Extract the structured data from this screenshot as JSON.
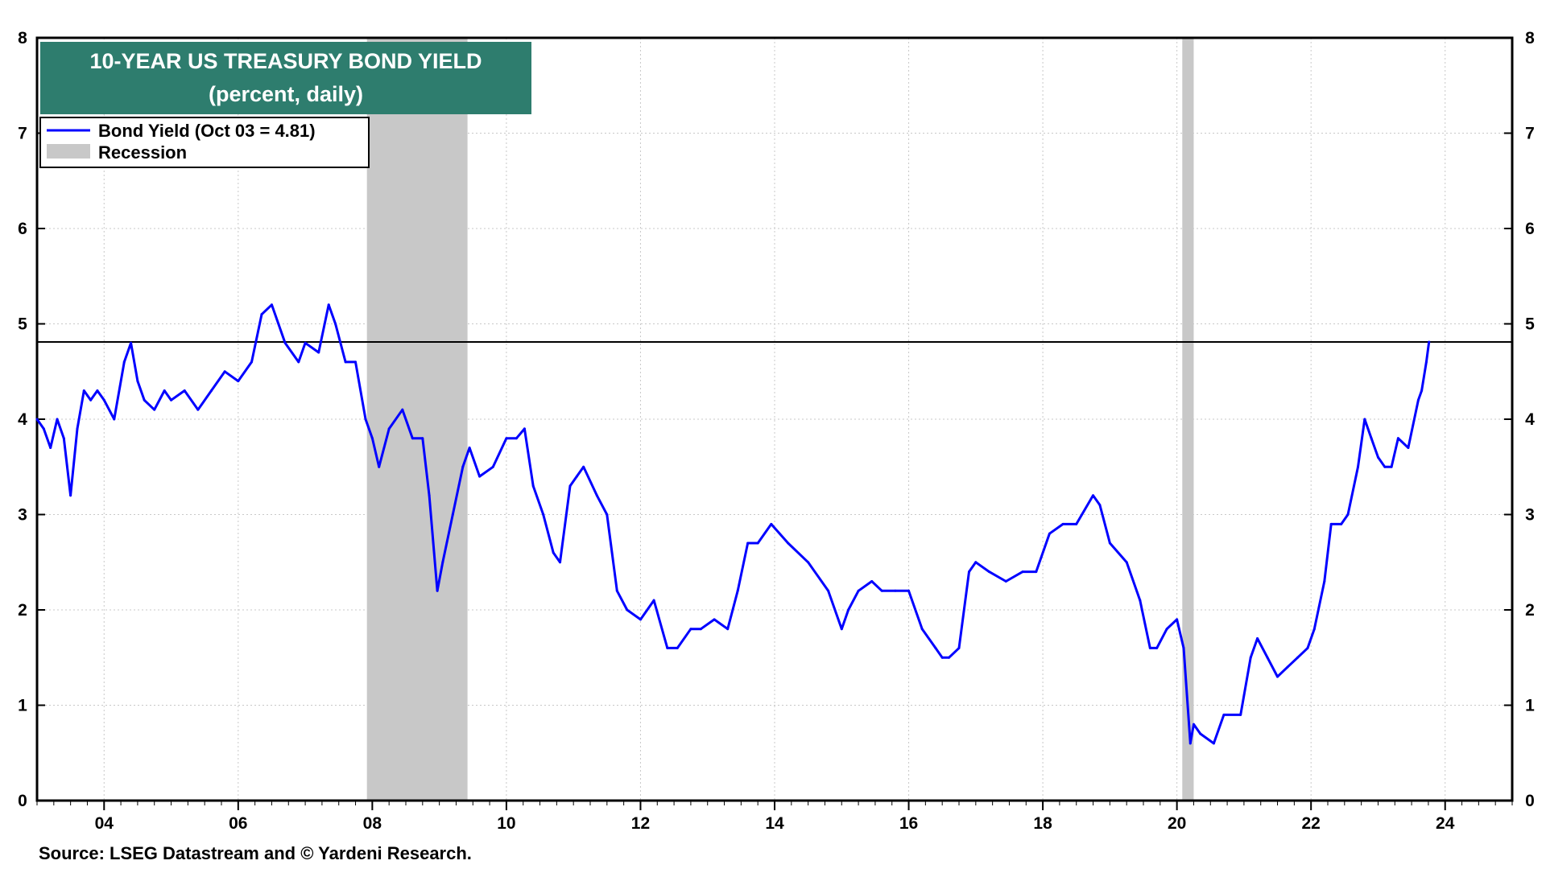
{
  "chart_data": {
    "type": "line",
    "title": "10-YEAR US TREASURY BOND YIELD",
    "subtitle": "(percent, daily)",
    "source": "Source: LSEG Datastream and © Yardeni Research.",
    "x_axis": {
      "min": 2003.0,
      "max": 2025.0,
      "tick_values": [
        2004,
        2006,
        2008,
        2010,
        2012,
        2014,
        2016,
        2018,
        2020,
        2022,
        2024
      ],
      "tick_labels": [
        "04",
        "06",
        "08",
        "10",
        "12",
        "14",
        "16",
        "18",
        "20",
        "22",
        "24"
      ]
    },
    "y_axis": {
      "min": 0,
      "max": 8,
      "tick_values": [
        0,
        1,
        2,
        3,
        4,
        5,
        6,
        7,
        8
      ],
      "tick_labels": [
        "0",
        "1",
        "2",
        "3",
        "4",
        "5",
        "6",
        "7",
        "8"
      ],
      "right_axis_mirrored": true
    },
    "grid": true,
    "legend": {
      "placement": "top-left",
      "entries": [
        {
          "label": "Bond Yield (Oct 03 = 4.81)",
          "kind": "line",
          "color": "#0000ff"
        },
        {
          "label": "Recession",
          "kind": "area",
          "color": "#c8c8c8"
        }
      ]
    },
    "reference_line": {
      "y": 4.81,
      "color": "#000000"
    },
    "recessions": [
      {
        "start": 2007.92,
        "end": 2009.42
      },
      {
        "start": 2020.08,
        "end": 2020.25
      }
    ],
    "series": [
      {
        "name": "Bond Yield (Oct 03 = 4.81)",
        "color": "#0000ff",
        "x": [
          2003.0,
          2003.1,
          2003.2,
          2003.3,
          2003.4,
          2003.5,
          2003.6,
          2003.7,
          2003.8,
          2003.9,
          2004.0,
          2004.15,
          2004.3,
          2004.4,
          2004.5,
          2004.6,
          2004.75,
          2004.9,
          2005.0,
          2005.2,
          2005.4,
          2005.6,
          2005.8,
          2006.0,
          2006.2,
          2006.35,
          2006.5,
          2006.7,
          2006.9,
          2007.0,
          2007.2,
          2007.35,
          2007.45,
          2007.6,
          2007.75,
          2007.9,
          2008.0,
          2008.1,
          2008.25,
          2008.45,
          2008.6,
          2008.75,
          2008.85,
          2008.97,
          2009.05,
          2009.2,
          2009.35,
          2009.45,
          2009.6,
          2009.8,
          2010.0,
          2010.15,
          2010.27,
          2010.4,
          2010.55,
          2010.7,
          2010.8,
          2010.95,
          2011.05,
          2011.15,
          2011.35,
          2011.5,
          2011.65,
          2011.8,
          2012.0,
          2012.2,
          2012.4,
          2012.55,
          2012.75,
          2012.9,
          2013.1,
          2013.3,
          2013.45,
          2013.6,
          2013.75,
          2013.95,
          2014.2,
          2014.5,
          2014.8,
          2015.0,
          2015.1,
          2015.25,
          2015.45,
          2015.6,
          2015.8,
          2016.0,
          2016.2,
          2016.4,
          2016.5,
          2016.6,
          2016.75,
          2016.9,
          2017.0,
          2017.2,
          2017.45,
          2017.7,
          2017.9,
          2018.1,
          2018.3,
          2018.5,
          2018.75,
          2018.85,
          2019.0,
          2019.25,
          2019.45,
          2019.6,
          2019.7,
          2019.85,
          2020.0,
          2020.1,
          2020.2,
          2020.25,
          2020.35,
          2020.55,
          2020.7,
          2020.95,
          2021.1,
          2021.2,
          2021.35,
          2021.5,
          2021.65,
          2021.8,
          2021.95,
          2022.05,
          2022.2,
          2022.3,
          2022.45,
          2022.55,
          2022.7,
          2022.8,
          2022.9,
          2023.0,
          2023.1,
          2023.2,
          2023.3,
          2023.45,
          2023.6,
          2023.65,
          2023.72,
          2023.76
        ],
        "values": [
          4.0,
          3.9,
          3.7,
          4.0,
          3.8,
          3.2,
          3.9,
          4.3,
          4.2,
          4.3,
          4.2,
          4.0,
          4.6,
          4.8,
          4.4,
          4.2,
          4.1,
          4.3,
          4.2,
          4.3,
          4.1,
          4.3,
          4.5,
          4.4,
          4.6,
          5.1,
          5.2,
          4.8,
          4.6,
          4.8,
          4.7,
          5.2,
          5.0,
          4.6,
          4.6,
          4.0,
          3.8,
          3.5,
          3.9,
          4.1,
          3.8,
          3.8,
          3.2,
          2.2,
          2.5,
          3.0,
          3.5,
          3.7,
          3.4,
          3.5,
          3.8,
          3.8,
          3.9,
          3.3,
          3.0,
          2.6,
          2.5,
          3.3,
          3.4,
          3.5,
          3.2,
          3.0,
          2.2,
          2.0,
          1.9,
          2.1,
          1.6,
          1.6,
          1.8,
          1.8,
          1.9,
          1.8,
          2.2,
          2.7,
          2.7,
          2.9,
          2.7,
          2.5,
          2.2,
          1.8,
          2.0,
          2.2,
          2.3,
          2.2,
          2.2,
          2.2,
          1.8,
          1.6,
          1.5,
          1.5,
          1.6,
          2.4,
          2.5,
          2.4,
          2.3,
          2.4,
          2.4,
          2.8,
          2.9,
          2.9,
          3.2,
          3.1,
          2.7,
          2.5,
          2.1,
          1.6,
          1.6,
          1.8,
          1.9,
          1.6,
          0.6,
          0.8,
          0.7,
          0.6,
          0.9,
          0.9,
          1.5,
          1.7,
          1.5,
          1.3,
          1.4,
          1.5,
          1.6,
          1.8,
          2.3,
          2.9,
          2.9,
          3.0,
          3.5,
          4.0,
          3.8,
          3.6,
          3.5,
          3.5,
          3.8,
          3.7,
          4.2,
          4.3,
          4.6,
          4.81
        ]
      }
    ]
  }
}
